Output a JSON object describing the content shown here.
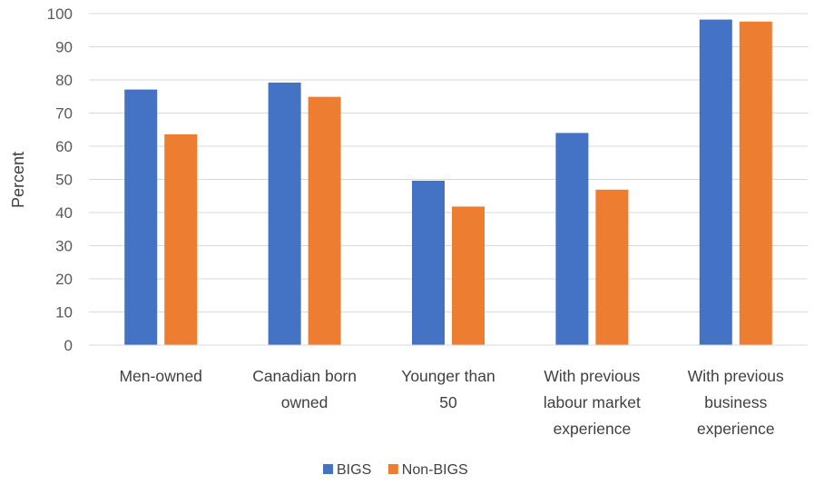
{
  "chart_data": {
    "type": "bar",
    "categories": [
      [
        "Men-owned"
      ],
      [
        "Canadian born",
        "owned"
      ],
      [
        "Younger than",
        "50"
      ],
      [
        "With previous",
        "labour market",
        "experience"
      ],
      [
        "With previous",
        "business",
        "experience"
      ]
    ],
    "series": [
      {
        "name": "BIGS",
        "color": "#4472c4",
        "values": [
          77.1,
          79.2,
          49.6,
          64,
          98.2
        ]
      },
      {
        "name": "Non-BIGS",
        "color": "#ed7d31",
        "values": [
          63.6,
          74.9,
          41.8,
          46.9,
          97.6
        ]
      }
    ],
    "ylabel": "Percent",
    "ylim": [
      0,
      100
    ],
    "yticks": [
      0,
      10,
      20,
      30,
      40,
      50,
      60,
      70,
      80,
      90,
      100
    ],
    "grid": true,
    "legend_position": "bottom"
  }
}
